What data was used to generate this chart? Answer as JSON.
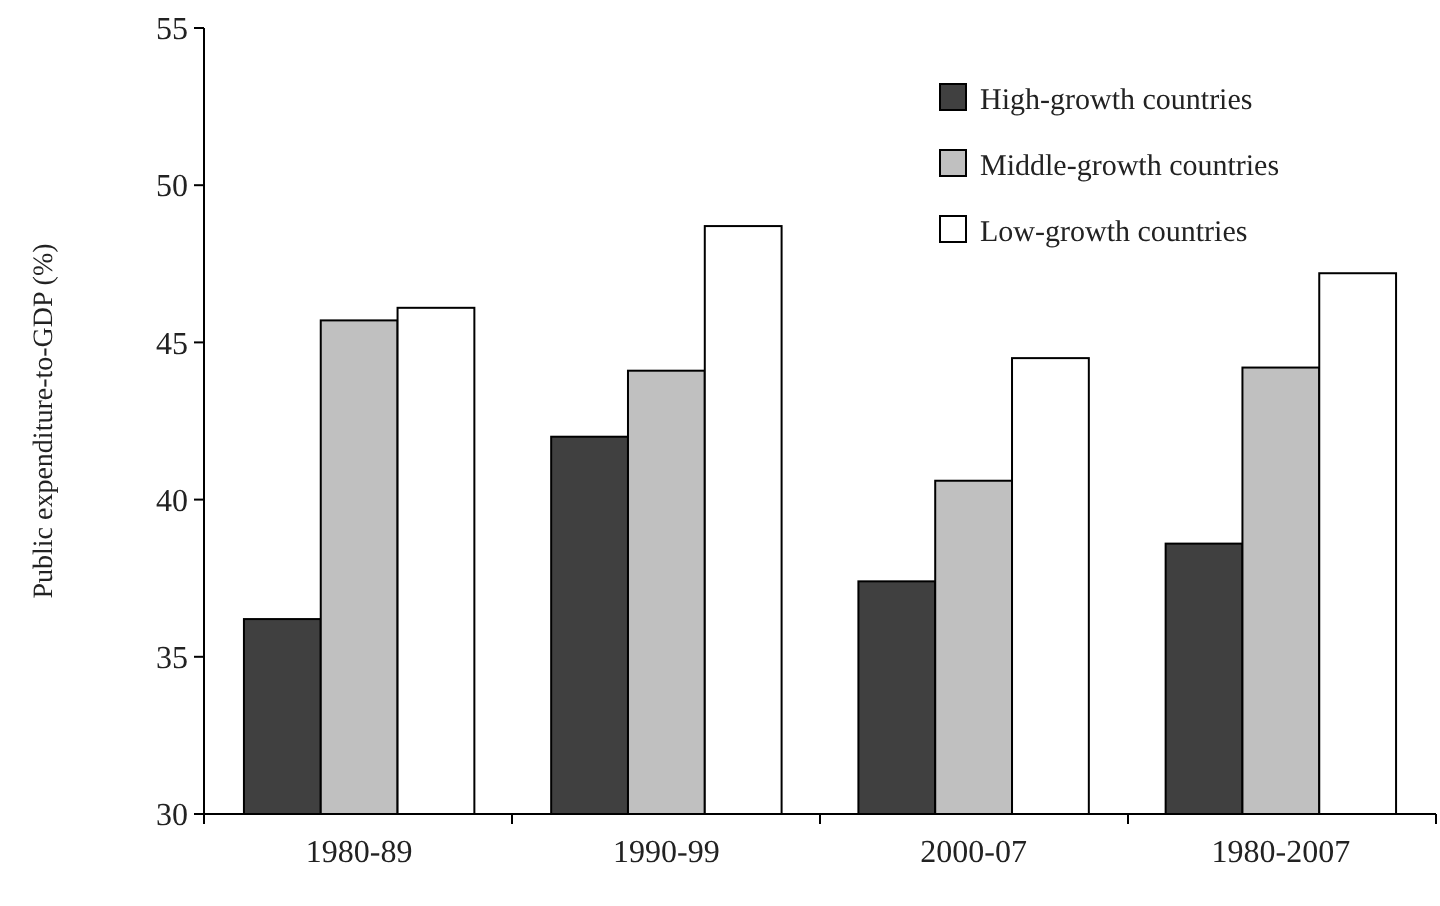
{
  "chart_data": {
    "type": "bar",
    "ylabel": "Public expenditure-to-GDP (%)",
    "categories": [
      "1980-89",
      "1990-99",
      "2000-07",
      "1980-2007"
    ],
    "series": [
      {
        "name": "High-growth countries",
        "color": "#404040",
        "values": [
          36.2,
          42.0,
          37.4,
          38.6
        ]
      },
      {
        "name": "Middle-growth countries",
        "color": "#c0c0c0",
        "values": [
          45.7,
          44.1,
          40.6,
          44.2
        ]
      },
      {
        "name": "Low-growth countries",
        "color": "#ffffff",
        "values": [
          46.1,
          48.7,
          44.5,
          47.2
        ]
      }
    ],
    "ylim": [
      30,
      55
    ],
    "yticks": [
      30,
      35,
      40,
      45,
      50,
      55
    ],
    "grid": false,
    "legend": "top right"
  }
}
